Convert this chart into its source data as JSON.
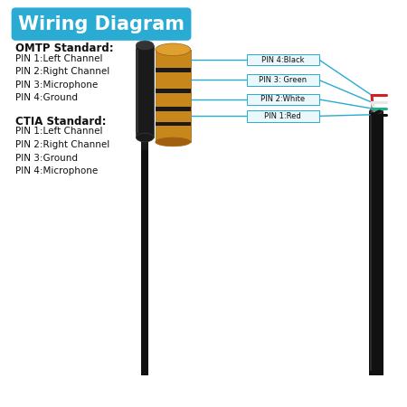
{
  "title": "Wiring Diagram",
  "title_bg": "#29ABD4",
  "title_color": "#FFFFFF",
  "bg_color": "#FFFFFF",
  "omtp_label": "OMTP Standard:",
  "omtp_pins": [
    "PIN 1:Left Channel",
    "PIN 2:Right Channel",
    "PIN 3:Microphone",
    "PIN 4:Ground"
  ],
  "ctia_label": "CTIA Standard:",
  "ctia_pins": [
    "PIN 1:Left Channel",
    "PIN 2:Right Channel",
    "PIN 3:Ground",
    "PIN 4:Microphone"
  ],
  "pin_labels": [
    "PIN 4:Black",
    "PIN 3: Green",
    "PIN 2:White",
    "PIN 1:Red"
  ],
  "pin_label_bg": "#EAF7FB",
  "pin_label_border": "#29ABD4",
  "line_color": "#29ABD4",
  "jack_color": "#1A1A1A",
  "jack_dark": "#111111",
  "gold_main": "#C8871A",
  "gold_light": "#E0A030",
  "gold_dark": "#A06010",
  "cable_color": "#111111",
  "wire_colors_strand": [
    "#CC2222",
    "#E8E8E8",
    "#1FAF8E",
    "#111111"
  ],
  "wire_end_colors": [
    "#CC2222",
    "#E8E8E8",
    "#1FAF8E",
    "#111111"
  ]
}
